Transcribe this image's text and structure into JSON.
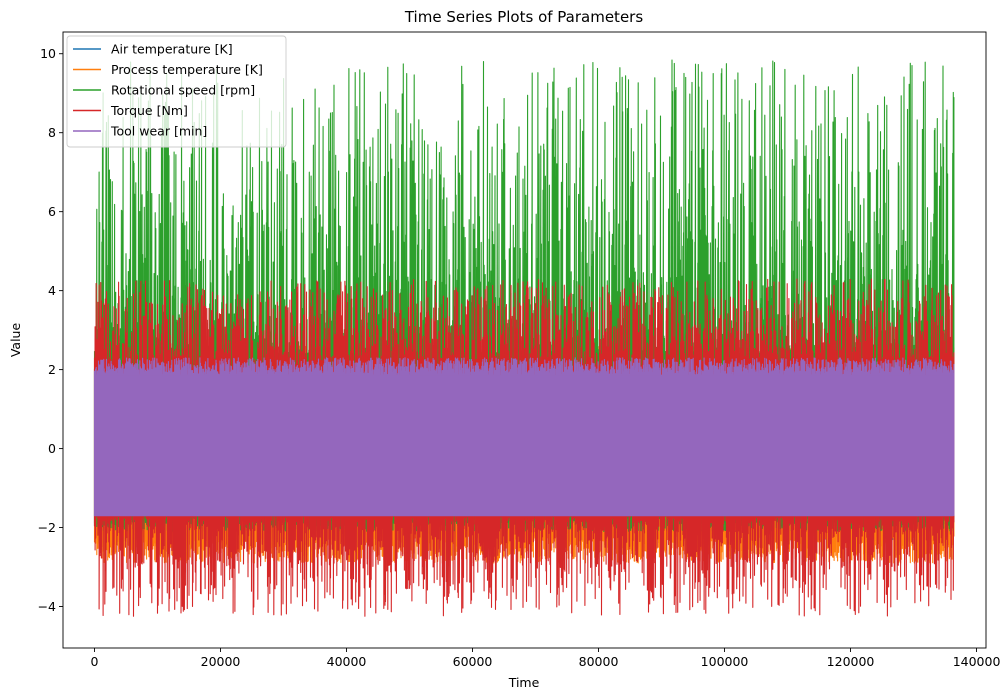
{
  "chart_data": {
    "type": "line",
    "title": "Time Series Plots of Parameters",
    "xlabel": "Time",
    "ylabel": "Value",
    "xlim": [
      -5000,
      141500
    ],
    "ylim": [
      -5.05,
      10.55
    ],
    "x_ticks": [
      0,
      20000,
      40000,
      60000,
      80000,
      100000,
      120000,
      140000
    ],
    "x_tick_labels": [
      "0",
      "20000",
      "40000",
      "60000",
      "80000",
      "100000",
      "120000",
      "140000"
    ],
    "y_ticks": [
      -4,
      -2,
      0,
      2,
      4,
      6,
      8,
      10
    ],
    "y_tick_labels": [
      "−4",
      "−2",
      "0",
      "2",
      "4",
      "6",
      "8",
      "10"
    ],
    "grid": false,
    "legend_position": "top-left",
    "x_range": [
      0,
      136400
    ],
    "series": [
      {
        "name": "Air temperature [K]",
        "color": "#1f77b4",
        "min": -2.35,
        "max": 2.25
      },
      {
        "name": "Process temperature [K]",
        "color": "#ff7f0e",
        "min": -2.9,
        "max": 2.6
      },
      {
        "name": "Rotational speed [rpm]",
        "color": "#2ca02c",
        "min": -2.1,
        "max": 9.85
      },
      {
        "name": "Torque [Nm]",
        "color": "#d62728",
        "min": -4.25,
        "max": 4.3
      },
      {
        "name": "Tool wear [min]",
        "color": "#9467bd",
        "min": -1.7,
        "max": 2.3
      }
    ]
  }
}
